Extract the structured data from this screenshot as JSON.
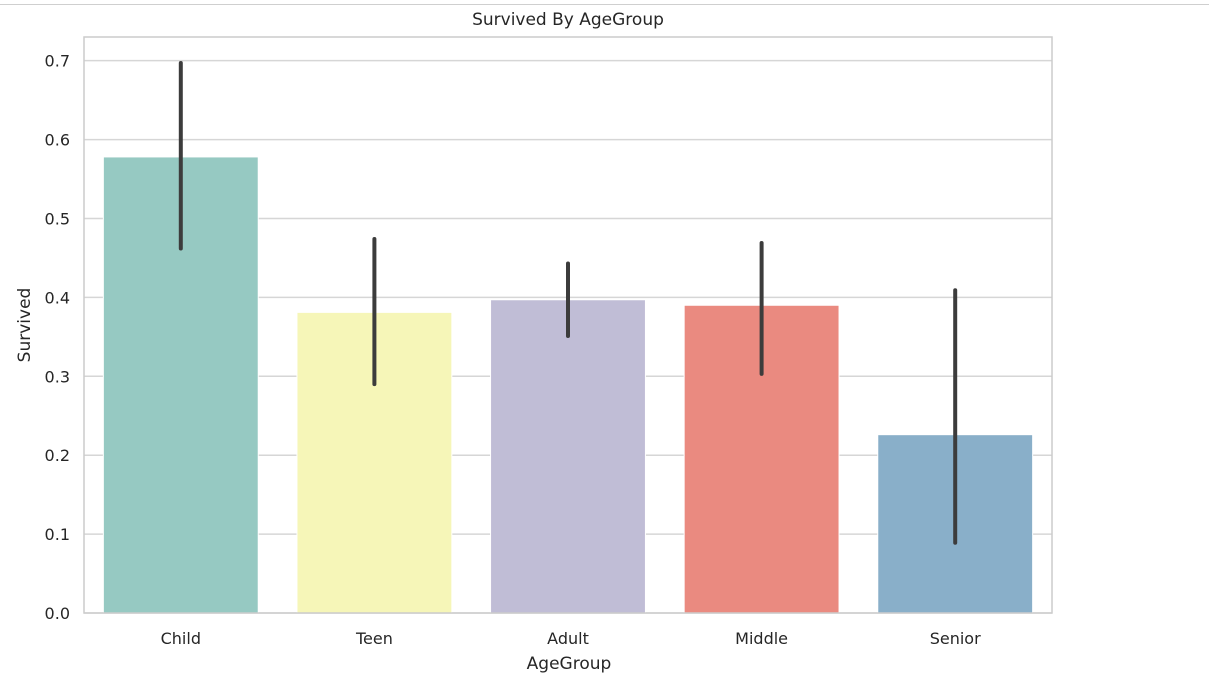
{
  "chart_data": {
    "type": "bar",
    "title": "Survived By AgeGroup",
    "xlabel": "AgeGroup",
    "ylabel": "Survived",
    "categories": [
      "Child",
      "Teen",
      "Adult",
      "Middle",
      "Senior"
    ],
    "values": [
      0.578,
      0.381,
      0.397,
      0.39,
      0.226
    ],
    "error_bars": [
      {
        "low": 0.462,
        "high": 0.697
      },
      {
        "low": 0.29,
        "high": 0.474
      },
      {
        "low": 0.351,
        "high": 0.443
      },
      {
        "low": 0.303,
        "high": 0.469
      },
      {
        "low": 0.089,
        "high": 0.409
      }
    ],
    "colors": [
      "#96c9c2",
      "#f6f6b8",
      "#c0bdd6",
      "#ea8a80",
      "#89afc9"
    ],
    "error_color": "#3c3c3c",
    "ylim": [
      0,
      0.73
    ],
    "yticks": [
      0.0,
      0.1,
      0.2,
      0.3,
      0.4,
      0.5,
      0.6,
      0.7
    ],
    "ytick_labels": [
      "0.0",
      "0.1",
      "0.2",
      "0.3",
      "0.4",
      "0.5",
      "0.6",
      "0.7"
    ],
    "grid": true,
    "grid_axis": "y",
    "legend": "none"
  }
}
